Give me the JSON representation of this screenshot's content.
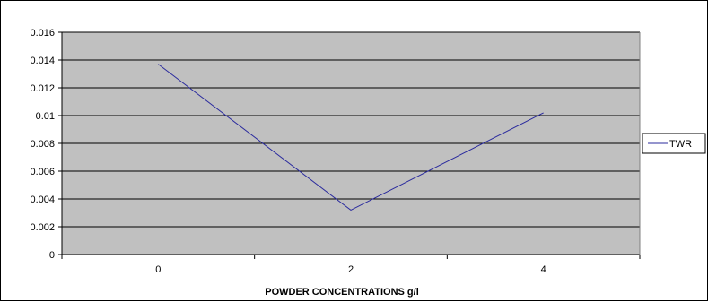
{
  "chart_data": {
    "type": "line",
    "title": "",
    "xlabel": "POWDER CONCENTRATIONS g/l",
    "ylabel": "",
    "categories": [
      "0",
      "2",
      "4"
    ],
    "series": [
      {
        "name": "TWR",
        "values": [
          0.0137,
          0.0032,
          0.0102
        ],
        "color": "#2b2b9e"
      }
    ],
    "ylim": [
      0,
      0.016
    ],
    "yticks": [
      "0",
      "0.002",
      "0.004",
      "0.006",
      "0.008",
      "0.01",
      "0.012",
      "0.014",
      "0.016"
    ],
    "grid": true,
    "legend": "right",
    "plot_background": "#c0c0c0"
  }
}
